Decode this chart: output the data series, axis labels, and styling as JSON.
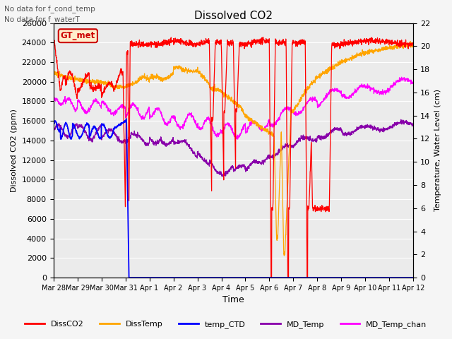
{
  "title": "Dissolved CO2",
  "xlabel": "Time",
  "ylabel_left": "Dissolved CO2 (ppm)",
  "ylabel_right": "Temperature, Water Level (cm)",
  "ylim_left": [
    0,
    26000
  ],
  "ylim_right": [
    0,
    22
  ],
  "yticks_left": [
    0,
    2000,
    4000,
    6000,
    8000,
    10000,
    12000,
    14000,
    16000,
    18000,
    20000,
    22000,
    24000,
    26000
  ],
  "yticks_right": [
    0,
    2,
    4,
    6,
    8,
    10,
    12,
    14,
    16,
    18,
    20,
    22
  ],
  "note1": "No data for f_cond_temp",
  "note2": "No data for f_waterT",
  "legend_entries": [
    "DissCO2",
    "DissTemp",
    "temp_CTD",
    "MD_Temp",
    "MD_Temp_chan"
  ],
  "legend_colors": [
    "#ff0000",
    "#ffa500",
    "#0000ff",
    "#8800aa",
    "#ff00ff"
  ],
  "gt_met_color": "#cc0000",
  "gt_met_bg": "#ffeecc",
  "bg_color": "#ebebeb",
  "grid_color": "#ffffff",
  "line_colors": {
    "DissCO2": "#ff0000",
    "DissTemp": "#ffa500",
    "temp_CTD": "#0000ff",
    "MD_Temp": "#8800aa",
    "MD_Temp_chan": "#ff00ff"
  }
}
